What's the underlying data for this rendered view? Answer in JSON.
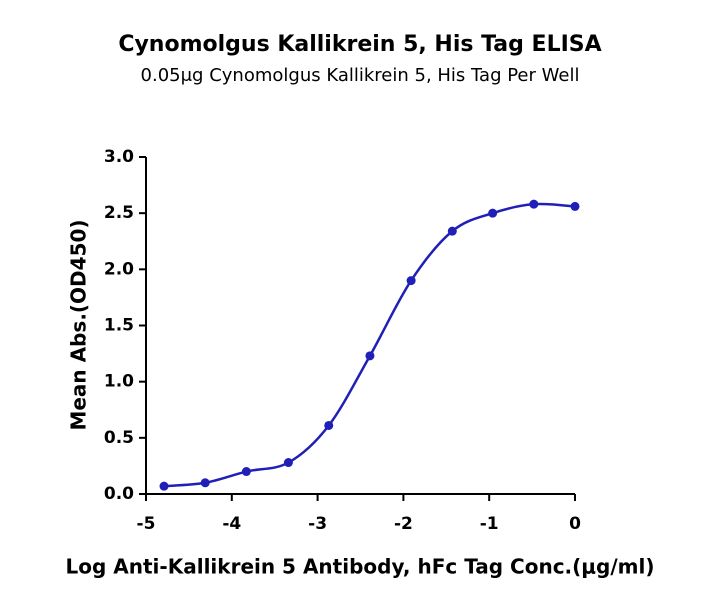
{
  "chart_data": {
    "type": "line",
    "title": "Cynomolgus Kallikrein 5, His Tag ELISA",
    "subtitle": "0.05μg Cynomolgus Kallikrein 5, His Tag Per Well",
    "x_label": "Log Anti-Kallikrein 5 Antibody, hFc Tag Conc.(μg/ml)",
    "y_label": "Mean Abs.(OD450)",
    "series": [
      {
        "name": "Anti-Kallikrein 5 Antibody",
        "color": "#2020b8",
        "x": [
          -4.79,
          -4.31,
          -3.83,
          -3.34,
          -2.87,
          -2.39,
          -1.91,
          -1.43,
          -0.96,
          -0.48,
          0
        ],
        "values": [
          0.07,
          0.1,
          0.2,
          0.28,
          0.61,
          1.23,
          1.9,
          2.34,
          2.5,
          2.58,
          2.56
        ]
      }
    ],
    "xlim": [
      -5,
      0
    ],
    "xticks": [
      -5,
      -4,
      -3,
      -2,
      -1,
      0
    ],
    "ylim": [
      0,
      3
    ],
    "yticks": [
      {
        "value": 0,
        "label": "0.0"
      },
      0.5,
      {
        "value": 1,
        "label": "1.0"
      },
      1.5,
      {
        "value": 2,
        "label": "2.0"
      },
      2.5,
      {
        "value": 3,
        "label": "3.0"
      }
    ]
  }
}
